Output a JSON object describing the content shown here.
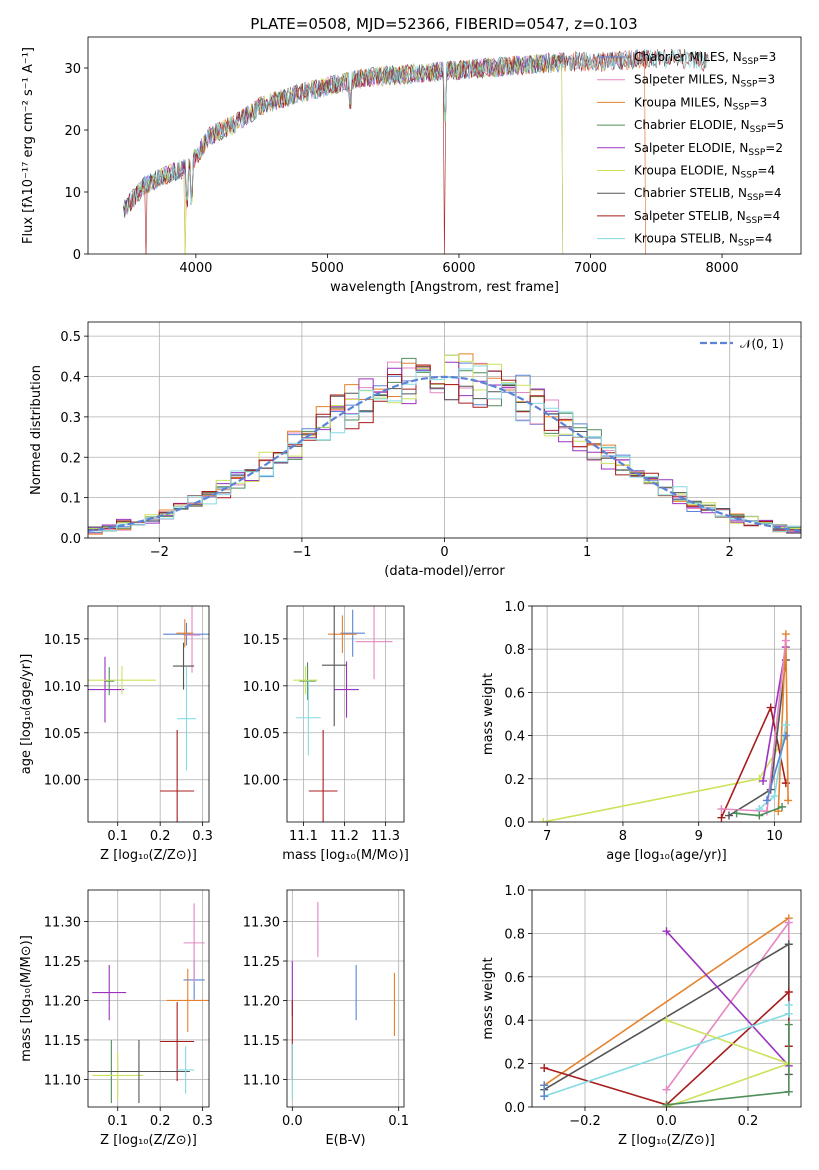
{
  "title": "PLATE=0508, MJD=52366, FIBERID=0547, z=0.103",
  "colors": {
    "Chabrier MILES": "#5b84d6",
    "Salpeter MILES": "#e587c2",
    "Kroupa MILES": "#e4822d",
    "Chabrier ELODIE": "#4f8f5b",
    "Salpeter ELODIE": "#9b32bf",
    "Kroupa ELODIE": "#cbe35a",
    "Chabrier STELIB": "#555555",
    "Salpeter STELIB": "#a81c1c",
    "Kroupa STELIB": "#84dbe4"
  },
  "chart_data": [
    {
      "id": "spectrum",
      "type": "line",
      "title": "PLATE=0508, MJD=52366, FIBERID=0547, z=0.103",
      "xlabel": "wavelength [Angstrom, rest frame]",
      "ylabel": "Flux [fλ10⁻¹⁷ erg cm⁻² s⁻¹ A⁻¹]",
      "xlim": [
        3180,
        8600
      ],
      "ylim": [
        0,
        35
      ],
      "xticks": [
        4000,
        5000,
        6000,
        7000,
        8000
      ],
      "yticks": [
        0,
        10,
        20,
        30
      ],
      "legend_position": "top-right",
      "continuum_x": [
        3450,
        3600,
        3800,
        3950,
        4100,
        4300,
        4500,
        4800,
        5000,
        5300,
        5600,
        5900,
        6200,
        6500,
        6800,
        7100,
        7400,
        7700,
        7900
      ],
      "continuum_y": [
        7,
        11,
        13,
        14,
        19,
        21,
        24,
        26,
        27,
        28.5,
        29,
        29.5,
        30,
        30.5,
        31,
        31,
        31.5,
        31.5,
        31
      ],
      "series": [
        {
          "name": "Chabrier MILES, N_SSP=3",
          "legend_label": "Chabrier MILES, N",
          "legend_sub": "SSP",
          "legend_tail": "=3",
          "xmax": 7420,
          "dips": []
        },
        {
          "name": "Salpeter MILES, N_SSP=3",
          "legend_label": "Salpeter MILES, N",
          "legend_sub": "SSP",
          "legend_tail": "=3",
          "xmax": 7420,
          "dips": [
            7420
          ]
        },
        {
          "name": "Kroupa MILES, N_SSP=3",
          "legend_label": "Kroupa MILES, N",
          "legend_sub": "SSP",
          "legend_tail": "=3",
          "xmax": 7420,
          "dips": [
            3920,
            7420
          ]
        },
        {
          "name": "Chabrier ELODIE, N_SSP=5",
          "legend_label": "Chabrier ELODIE, N",
          "legend_sub": "SSP",
          "legend_tail": "=5",
          "xmax": 6790,
          "dips": [
            6790
          ]
        },
        {
          "name": "Salpeter ELODIE, N_SSP=2",
          "legend_label": "Salpeter ELODIE, N",
          "legend_sub": "SSP",
          "legend_tail": "=2",
          "xmax": 6790,
          "dips": []
        },
        {
          "name": "Kroupa ELODIE, N_SSP=4",
          "legend_label": "Kroupa ELODIE, N",
          "legend_sub": "SSP",
          "legend_tail": "=4",
          "xmax": 6790,
          "dips": [
            3920,
            6790
          ]
        },
        {
          "name": "Chabrier STELIB, N_SSP=4",
          "legend_label": "Chabrier STELIB, N",
          "legend_sub": "SSP",
          "legend_tail": "=4",
          "xmax": 7900,
          "dips": []
        },
        {
          "name": "Salpeter STELIB, N_SSP=4",
          "legend_label": "Salpeter STELIB, N",
          "legend_sub": "SSP",
          "legend_tail": "=4",
          "xmax": 7900,
          "dips": [
            3620,
            5890
          ]
        },
        {
          "name": "Kroupa STELIB, N_SSP=4",
          "legend_label": "Kroupa STELIB, N",
          "legend_sub": "SSP",
          "legend_tail": "=4",
          "xmax": 7900,
          "dips": []
        }
      ]
    },
    {
      "id": "residuals",
      "type": "histogram",
      "xlabel": "(data-model)/error",
      "ylabel": "Normed distribution",
      "xlim": [
        -2.5,
        2.5
      ],
      "ylim": [
        0,
        0.535
      ],
      "xticks": [
        -2,
        -1,
        0,
        1,
        2
      ],
      "yticks": [
        0.0,
        0.1,
        0.2,
        0.3,
        0.4,
        0.5
      ],
      "grid": true,
      "legend_position": "top-right",
      "reference_curve": {
        "name": "N(0,1)",
        "legend_label": "𝒩(0, 1)",
        "color": "#5b84d6",
        "style": "dashed"
      },
      "bin_width": 0.1,
      "x_start": -2.5,
      "bins": 50
    },
    {
      "id": "age_vs_Z",
      "type": "errorbar",
      "xlabel": "Z [log₁₀(Z/Z⊙)]",
      "ylabel": "age  [log₁₀(age/yr)]",
      "xlim": [
        0.03,
        0.315
      ],
      "ylim": [
        9.955,
        10.185
      ],
      "xticks": [
        0.1,
        0.2,
        0.3
      ],
      "yticks": [
        10.0,
        10.05,
        10.1,
        10.15
      ],
      "grid": true,
      "points": [
        {
          "series": "Chabrier MILES",
          "x": 0.262,
          "y": 10.155,
          "xerr": 0.055,
          "yerr": 0.012
        },
        {
          "series": "Salpeter MILES",
          "x": 0.275,
          "y": 10.154,
          "xerr": 0.02,
          "yerr": 0.04
        },
        {
          "series": "Kroupa MILES",
          "x": 0.258,
          "y": 10.156,
          "xerr": 0.02,
          "yerr": 0.015
        },
        {
          "series": "Chabrier ELODIE",
          "x": 0.08,
          "y": 10.105,
          "xerr": 0.012,
          "yerr": 0.015
        },
        {
          "series": "Salpeter ELODIE",
          "x": 0.07,
          "y": 10.096,
          "xerr": 0.045,
          "yerr": 0.035
        },
        {
          "series": "Kroupa ELODIE",
          "x": 0.11,
          "y": 10.106,
          "xerr": 0.08,
          "yerr": 0.015
        },
        {
          "series": "Chabrier STELIB",
          "x": 0.255,
          "y": 10.121,
          "xerr": 0.025,
          "yerr": 0.025
        },
        {
          "series": "Salpeter STELIB",
          "x": 0.24,
          "y": 9.988,
          "xerr": 0.04,
          "yerr": 0.065
        },
        {
          "series": "Kroupa STELIB",
          "x": 0.262,
          "y": 10.065,
          "xerr": 0.022,
          "yerr": 0.055
        }
      ]
    },
    {
      "id": "age_vs_mass",
      "type": "errorbar",
      "xlabel": "mass [log₁₀(M/M⊙)]",
      "ylabel": "",
      "xlim": [
        11.06,
        11.345
      ],
      "ylim": [
        9.955,
        10.185
      ],
      "xticks": [
        11.1,
        11.2,
        11.3
      ],
      "yticks": [
        10.0,
        10.05,
        10.1,
        10.15
      ],
      "grid": true,
      "points": [
        {
          "series": "Chabrier MILES",
          "x": 11.22,
          "y": 10.156,
          "xerr": 0.03,
          "yerr": 0.025
        },
        {
          "series": "Salpeter MILES",
          "x": 11.272,
          "y": 10.147,
          "xerr": 0.045,
          "yerr": 0.04
        },
        {
          "series": "Kroupa MILES",
          "x": 11.195,
          "y": 10.155,
          "xerr": 0.035,
          "yerr": 0.02
        },
        {
          "series": "Chabrier ELODIE",
          "x": 11.11,
          "y": 10.105,
          "xerr": 0.02,
          "yerr": 0.02
        },
        {
          "series": "Salpeter ELODIE",
          "x": 11.205,
          "y": 10.096,
          "xerr": 0.03,
          "yerr": 0.03
        },
        {
          "series": "Kroupa ELODIE",
          "x": 11.105,
          "y": 10.106,
          "xerr": 0.03,
          "yerr": 0.015
        },
        {
          "series": "Chabrier STELIB",
          "x": 11.175,
          "y": 10.122,
          "xerr": 0.03,
          "yerr": 0.065
        },
        {
          "series": "Salpeter STELIB",
          "x": 11.148,
          "y": 9.988,
          "xerr": 0.035,
          "yerr": 0.065
        },
        {
          "series": "Kroupa STELIB",
          "x": 11.112,
          "y": 10.066,
          "xerr": 0.03,
          "yerr": 0.04
        }
      ]
    },
    {
      "id": "weight_vs_age",
      "type": "line",
      "xlabel": "age  [log₁₀(age/yr)]",
      "ylabel": "mass weight",
      "xlim": [
        6.8,
        10.35
      ],
      "ylim": [
        0,
        1
      ],
      "xticks": [
        7,
        8,
        9,
        10
      ],
      "yticks": [
        0.0,
        0.2,
        0.4,
        0.6,
        0.8,
        1.0
      ],
      "grid": true,
      "series": [
        {
          "series": "Kroupa ELODIE",
          "x": [
            6.95,
            9.8,
            10.15
          ],
          "y": [
            0.0,
            0.2,
            0.4
          ]
        },
        {
          "series": "Salpeter ELODIE",
          "x": [
            9.85,
            10.15
          ],
          "y": [
            0.19,
            0.81
          ]
        },
        {
          "series": "Salpeter STELIB",
          "x": [
            9.3,
            9.95,
            10.15
          ],
          "y": [
            0.02,
            0.53,
            0.18
          ]
        },
        {
          "series": "Chabrier STELIB",
          "x": [
            9.4,
            9.95,
            10.15
          ],
          "y": [
            0.03,
            0.15,
            0.75
          ]
        },
        {
          "series": "Kroupa MILES",
          "x": [
            10.05,
            10.15,
            10.18
          ],
          "y": [
            0.05,
            0.87,
            0.1
          ]
        },
        {
          "series": "Salpeter MILES",
          "x": [
            9.3,
            9.9,
            10.15
          ],
          "y": [
            0.06,
            0.05,
            0.84
          ]
        },
        {
          "series": "Kroupa STELIB",
          "x": [
            9.8,
            10.0,
            10.15
          ],
          "y": [
            0.06,
            0.12,
            0.45
          ]
        },
        {
          "series": "Chabrier ELODIE",
          "x": [
            9.5,
            9.8,
            10.1
          ],
          "y": [
            0.04,
            0.03,
            0.07
          ]
        },
        {
          "series": "Chabrier MILES",
          "x": [
            9.9,
            10.15
          ],
          "y": [
            0.1,
            0.4
          ]
        }
      ]
    },
    {
      "id": "mass_vs_Z",
      "type": "errorbar",
      "xlabel": "Z [log₁₀(Z/Z⊙)]",
      "ylabel": "mass [log₁₀(M/M⊙)]",
      "xlim": [
        0.03,
        0.315
      ],
      "ylim": [
        11.065,
        11.34
      ],
      "xticks": [
        0.1,
        0.2,
        0.3
      ],
      "yticks": [
        11.1,
        11.15,
        11.2,
        11.25,
        11.3
      ],
      "grid": true,
      "points": [
        {
          "series": "Chabrier MILES",
          "x": 0.28,
          "y": 11.226,
          "xerr": 0.025,
          "yerr": 0.025
        },
        {
          "series": "Salpeter MILES",
          "x": 0.28,
          "y": 11.273,
          "xerr": 0.025,
          "yerr": 0.05
        },
        {
          "series": "Kroupa MILES",
          "x": 0.265,
          "y": 11.2,
          "xerr": 0.05,
          "yerr": 0.04
        },
        {
          "series": "Chabrier ELODIE",
          "x": 0.085,
          "y": 11.11,
          "xerr": 0.02,
          "yerr": 0.04
        },
        {
          "series": "Salpeter ELODIE",
          "x": 0.08,
          "y": 11.21,
          "xerr": 0.04,
          "yerr": 0.035
        },
        {
          "series": "Kroupa ELODIE",
          "x": 0.1,
          "y": 11.105,
          "xerr": 0.06,
          "yerr": 0.03
        },
        {
          "series": "Chabrier STELIB",
          "x": 0.15,
          "y": 11.11,
          "xerr": 0.12,
          "yerr": 0.04
        },
        {
          "series": "Salpeter STELIB",
          "x": 0.24,
          "y": 11.148,
          "xerr": 0.04,
          "yerr": 0.05
        },
        {
          "series": "Kroupa STELIB",
          "x": 0.26,
          "y": 11.112,
          "xerr": 0.02,
          "yerr": 0.03
        }
      ]
    },
    {
      "id": "mass_vs_ebv",
      "type": "errorbar",
      "xlabel": "E(B-V)",
      "ylabel": "",
      "xlim": [
        -0.005,
        0.105
      ],
      "ylim": [
        11.065,
        11.34
      ],
      "xticks": [
        0.0,
        0.1
      ],
      "yticks": [
        11.1,
        11.15,
        11.2,
        11.25,
        11.3
      ],
      "grid": true,
      "points": [
        {
          "series": "Chabrier MILES",
          "x": 0.06,
          "y": 11.21,
          "xerr": 0.0,
          "yerr": 0.035
        },
        {
          "series": "Salpeter MILES",
          "x": 0.024,
          "y": 11.29,
          "xerr": 0.0,
          "yerr": 0.035
        },
        {
          "series": "Kroupa MILES",
          "x": 0.096,
          "y": 11.195,
          "xerr": 0.0,
          "yerr": 0.04
        },
        {
          "series": "Salpeter ELODIE",
          "x": 0.0,
          "y": 11.215,
          "xerr": 0.0,
          "yerr": 0.035
        },
        {
          "series": "Salpeter STELIB",
          "x": 0.0,
          "y": 11.15,
          "xerr": 0.0,
          "yerr": 0.05
        },
        {
          "series": "Kroupa STELIB",
          "x": 0.0,
          "y": 11.11,
          "xerr": 0.0,
          "yerr": 0.035
        }
      ]
    },
    {
      "id": "weight_vs_Z",
      "type": "line",
      "xlabel": "Z [log₁₀(Z/Z⊙)]",
      "ylabel": "mass weight",
      "xlim": [
        -0.33,
        0.33
      ],
      "ylim": [
        0,
        1
      ],
      "xticks": [
        -0.2,
        0.0,
        0.2
      ],
      "yticks": [
        0.0,
        0.2,
        0.4,
        0.6,
        0.8,
        1.0
      ],
      "grid": true,
      "series": [
        {
          "series": "Kroupa MILES",
          "x": [
            -0.3,
            0.3
          ],
          "y": [
            0.1,
            0.87
          ]
        },
        {
          "series": "Salpeter MILES",
          "x": [
            0.0,
            0.3,
            0.3
          ],
          "y": [
            0.08,
            0.85,
            0.07
          ]
        },
        {
          "series": "Chabrier STELIB",
          "x": [
            -0.3,
            0.3,
            0.3
          ],
          "y": [
            0.08,
            0.75,
            0.15
          ]
        },
        {
          "series": "Salpeter STELIB",
          "x": [
            -0.3,
            0.0,
            0.3,
            0.3
          ],
          "y": [
            0.18,
            0.01,
            0.53,
            0.28
          ]
        },
        {
          "series": "Salpeter ELODIE",
          "x": [
            0.0,
            0.3
          ],
          "y": [
            0.81,
            0.19
          ]
        },
        {
          "series": "Kroupa STELIB",
          "x": [
            -0.3,
            0.3,
            0.3
          ],
          "y": [
            0.05,
            0.43,
            0.47
          ]
        },
        {
          "series": "Kroupa ELODIE",
          "x": [
            0.0,
            0.3,
            0.0
          ],
          "y": [
            0.0,
            0.2,
            0.4
          ]
        },
        {
          "series": "Chabrier ELODIE",
          "x": [
            0.0,
            0.3,
            0.3
          ],
          "y": [
            0.01,
            0.07,
            0.38
          ]
        },
        {
          "series": "Chabrier MILES",
          "x": [
            -0.3,
            -0.3
          ],
          "y": [
            0.05,
            0.1
          ]
        }
      ]
    }
  ]
}
